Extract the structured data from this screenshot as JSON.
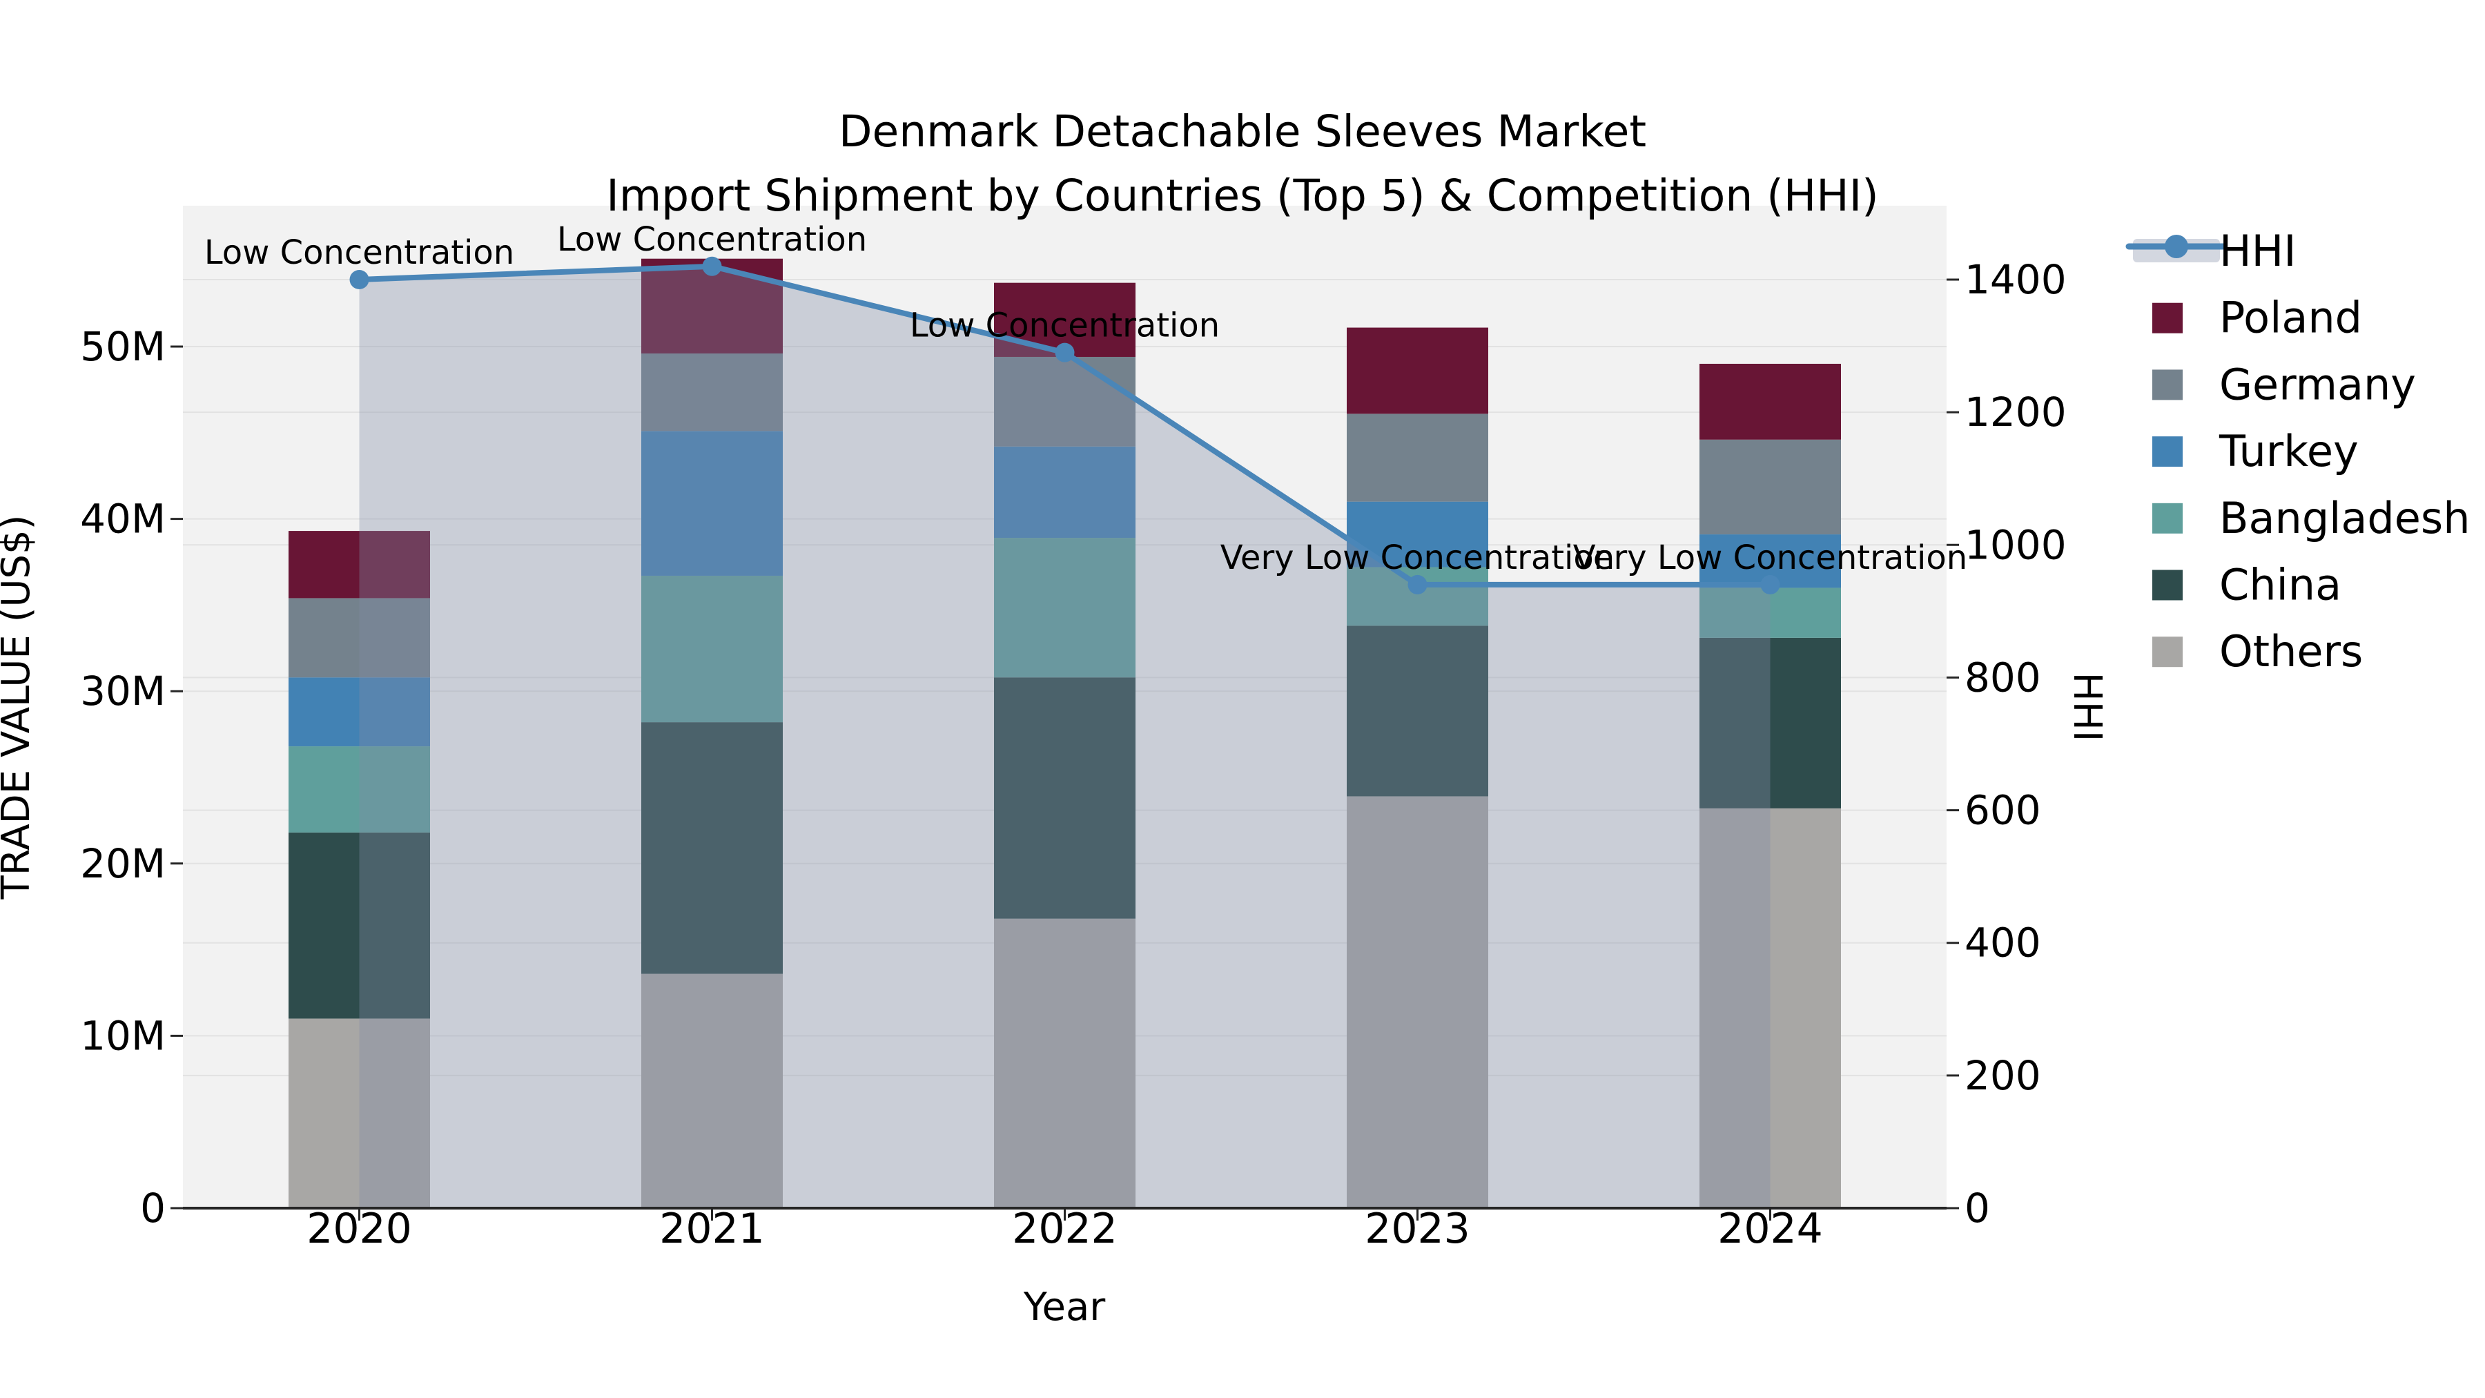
{
  "title": {
    "line1": "Denmark Detachable Sleeves Market",
    "line2": "Import Shipment by Countries (Top 5) & Competition (HHI)"
  },
  "axes": {
    "x": {
      "label": "Year",
      "categories": [
        "2020",
        "2021",
        "2022",
        "2023",
        "2024"
      ]
    },
    "y_left": {
      "label": "TRADE VALUE (US$)",
      "ticks": [
        {
          "label": "0",
          "value": 0
        },
        {
          "label": "10M",
          "value": 10
        },
        {
          "label": "20M",
          "value": 20
        },
        {
          "label": "30M",
          "value": 30
        },
        {
          "label": "40M",
          "value": 40
        },
        {
          "label": "50M",
          "value": 50
        }
      ]
    },
    "y_right": {
      "label": "HHI",
      "ticks": [
        {
          "label": "0",
          "value": 0
        },
        {
          "label": "200",
          "value": 200
        },
        {
          "label": "400",
          "value": 400
        },
        {
          "label": "600",
          "value": 600
        },
        {
          "label": "800",
          "value": 800
        },
        {
          "label": "1000",
          "value": 1000
        },
        {
          "label": "1200",
          "value": 1200
        },
        {
          "label": "1400",
          "value": 1400
        }
      ]
    }
  },
  "chart_data": {
    "type": "bar",
    "subtype": "stacked-bars-with-secondary-axis-line",
    "title": "Denmark Detachable Sleeves Market Import Shipment by Countries (Top 5) & Competition (HHI)",
    "xlabel": "Year",
    "ylabel_left": "TRADE VALUE (US$)",
    "ylabel_right": "HHI",
    "unit": "US$ millions",
    "categories": [
      "2020",
      "2021",
      "2022",
      "2023",
      "2024"
    ],
    "series": [
      {
        "name": "Poland",
        "color": "#681535",
        "values": [
          3.9,
          5.5,
          4.3,
          5.0,
          4.4
        ]
      },
      {
        "name": "Germany",
        "color": "#74828d",
        "values": [
          4.6,
          4.5,
          5.2,
          5.1,
          5.5
        ]
      },
      {
        "name": "Turkey",
        "color": "#4282b4",
        "values": [
          4.0,
          8.4,
          5.3,
          3.8,
          3.1
        ]
      },
      {
        "name": "Bangladesh",
        "color": "#5f9f9c",
        "values": [
          5.0,
          8.5,
          8.1,
          3.4,
          2.9
        ]
      },
      {
        "name": "China",
        "color": "#2e4c4c",
        "values": [
          10.8,
          14.6,
          14.0,
          9.9,
          9.9
        ]
      },
      {
        "name": "Others",
        "color": "#a8a7a5",
        "values": [
          11.0,
          13.6,
          16.8,
          23.9,
          23.2
        ]
      }
    ],
    "totals": [
      39.3,
      55.1,
      53.7,
      51.1,
      49.0
    ],
    "line_series": {
      "name": "HHI",
      "axis": "right",
      "color": "#4a86b8",
      "fill_under": true,
      "fill_color": "rgba(128,140,166,0.35)",
      "values": [
        1400,
        1420,
        1290,
        940,
        940
      ]
    },
    "annotations": [
      "Low Concentration",
      "Low Concentration",
      "Low Concentration",
      "Very Low Concentration",
      "Very Low Concentration"
    ],
    "y_left_range": [
      0,
      58.2
    ],
    "y_right_range": [
      0,
      1511
    ],
    "grid": true,
    "legend_position": "right-outside"
  },
  "legend": {
    "items": [
      {
        "label": "HHI",
        "type": "line",
        "color": "#4a86b8"
      },
      {
        "label": "Poland",
        "type": "swatch",
        "color": "#681535"
      },
      {
        "label": "Germany",
        "type": "swatch",
        "color": "#74828d"
      },
      {
        "label": "Turkey",
        "type": "swatch",
        "color": "#4282b4"
      },
      {
        "label": "Bangladesh",
        "type": "swatch",
        "color": "#5f9f9c"
      },
      {
        "label": "China",
        "type": "swatch",
        "color": "#2e4c4c"
      },
      {
        "label": "Others",
        "type": "swatch",
        "color": "#a8a7a5"
      }
    ]
  },
  "colors": {
    "plot_background": "#f2f2f2",
    "page_background": "#ffffff",
    "gridline": "#e2e2e2",
    "axis_spine": "#262626",
    "text": "#000000"
  }
}
